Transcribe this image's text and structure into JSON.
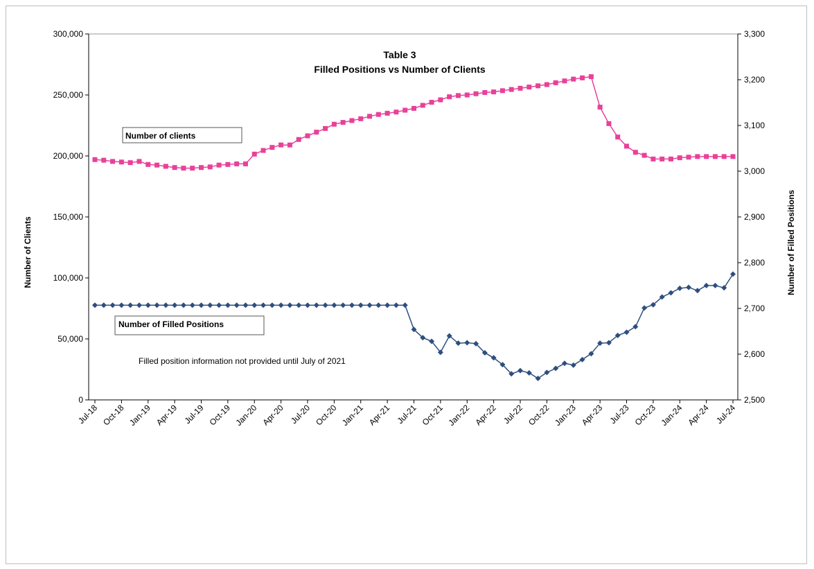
{
  "chart_data": {
    "type": "line",
    "title_line1": "Table 3",
    "title_line2": "Filled Positions vs Number of Clients",
    "ylabel": "Number of Clients",
    "y2label": "Number of Filled Positions",
    "ylim": [
      0,
      300000
    ],
    "y2lim": [
      2500,
      3300
    ],
    "yticks": [
      "0",
      "50,000",
      "100,000",
      "150,000",
      "200,000",
      "250,000",
      "300,000"
    ],
    "y2ticks": [
      "2,500",
      "2,600",
      "2,700",
      "2,800",
      "2,900",
      "3,000",
      "3,100",
      "3,200",
      "3,300"
    ],
    "xlabels": [
      "Jul-18",
      "Oct-18",
      "Jan-19",
      "Apr-19",
      "Jul-19",
      "Oct-19",
      "Jan-20",
      "Apr-20",
      "Jul-20",
      "Oct-20",
      "Jan-21",
      "Apr-21",
      "Jul-21",
      "Oct-21",
      "Jan-22",
      "Apr-22",
      "Jul-22",
      "Oct-22",
      "Jan-23",
      "Apr-23",
      "Jul-23",
      "Oct-23",
      "Jan-24",
      "Apr-24",
      "Jul-24"
    ],
    "legend_clients": "Number of clients",
    "legend_positions": "Number of Filled Positions",
    "annotation": "Filled position information not provided until July of 2021",
    "colors": {
      "clients": "#e8419a",
      "positions": "#2e4e7e"
    },
    "series": [
      {
        "name": "Number of clients",
        "axis": "left",
        "values": [
          197000,
          196500,
          195500,
          195000,
          194500,
          195500,
          193000,
          192500,
          191500,
          190500,
          190000,
          190000,
          190500,
          191000,
          192500,
          193000,
          193500,
          193500,
          201500,
          204500,
          207000,
          209000,
          209000,
          213500,
          216500,
          219500,
          222500,
          226000,
          227500,
          229000,
          230500,
          232500,
          234000,
          235000,
          236000,
          237500,
          239000,
          241500,
          244000,
          246000,
          248500,
          249500,
          250000,
          251000,
          252000,
          252500,
          253500,
          254500,
          255500,
          256500,
          257500,
          258500,
          260000,
          261500,
          263000,
          264000,
          265000,
          240000,
          226500,
          215500,
          208000,
          203000,
          200500,
          197500,
          197500,
          197500,
          198500,
          199000,
          199500,
          199500,
          199500,
          199500,
          199500
        ]
      },
      {
        "name": "Number of Filled Positions",
        "axis": "right",
        "values": [
          2707,
          2707,
          2707,
          2707,
          2707,
          2707,
          2707,
          2707,
          2707,
          2707,
          2707,
          2707,
          2707,
          2707,
          2707,
          2707,
          2707,
          2707,
          2707,
          2707,
          2707,
          2707,
          2707,
          2707,
          2707,
          2707,
          2707,
          2707,
          2707,
          2707,
          2707,
          2707,
          2707,
          2707,
          2707,
          2707,
          2654,
          2636,
          2628,
          2604,
          2640,
          2624,
          2625,
          2623,
          2603,
          2592,
          2577,
          2557,
          2564,
          2559,
          2547,
          2560,
          2569,
          2580,
          2576,
          2588,
          2601,
          2624,
          2625,
          2641,
          2648,
          2660,
          2701,
          2708,
          2725,
          2734,
          2744,
          2746,
          2739,
          2750,
          2750,
          2745,
          2775
        ]
      }
    ]
  }
}
